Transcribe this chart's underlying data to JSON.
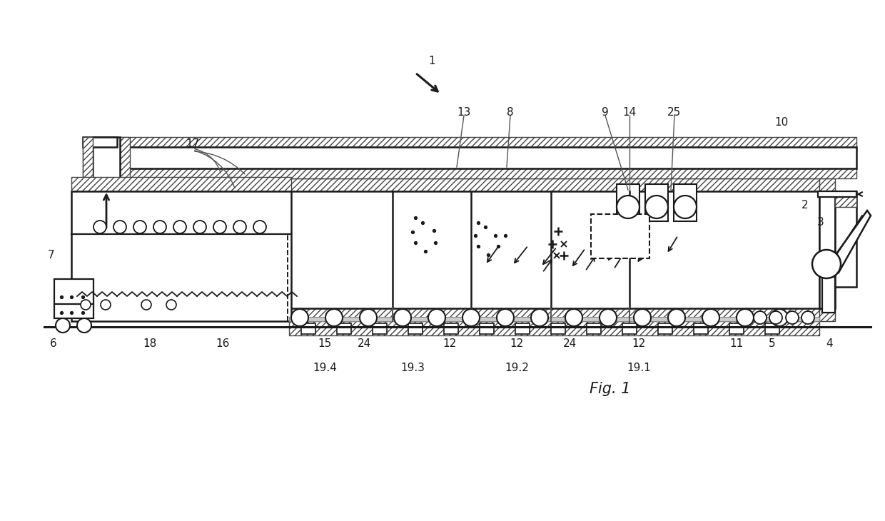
{
  "bg_color": "#ffffff",
  "lc": "#1a1a1a",
  "fig_caption": "Fig. 1",
  "labels": [
    [
      "1",
      605,
      645
    ],
    [
      "2",
      1128,
      442
    ],
    [
      "3",
      1150,
      418
    ],
    [
      "4",
      1162,
      248
    ],
    [
      "5",
      1082,
      248
    ],
    [
      "6",
      75,
      248
    ],
    [
      "7",
      72,
      372
    ],
    [
      "8",
      715,
      572
    ],
    [
      "9",
      848,
      572
    ],
    [
      "10",
      1095,
      558
    ],
    [
      "11",
      1032,
      248
    ],
    [
      "12",
      630,
      248
    ],
    [
      "12",
      724,
      248
    ],
    [
      "12",
      895,
      248
    ],
    [
      "13",
      650,
      572
    ],
    [
      "14",
      882,
      572
    ],
    [
      "15",
      455,
      248
    ],
    [
      "16",
      312,
      248
    ],
    [
      "17",
      270,
      528
    ],
    [
      "18",
      210,
      248
    ],
    [
      "19.1",
      895,
      214
    ],
    [
      "19.2",
      724,
      214
    ],
    [
      "19.3",
      578,
      214
    ],
    [
      "19.4",
      455,
      214
    ],
    [
      "24",
      510,
      248
    ],
    [
      "24",
      798,
      248
    ],
    [
      "25",
      945,
      572
    ]
  ]
}
